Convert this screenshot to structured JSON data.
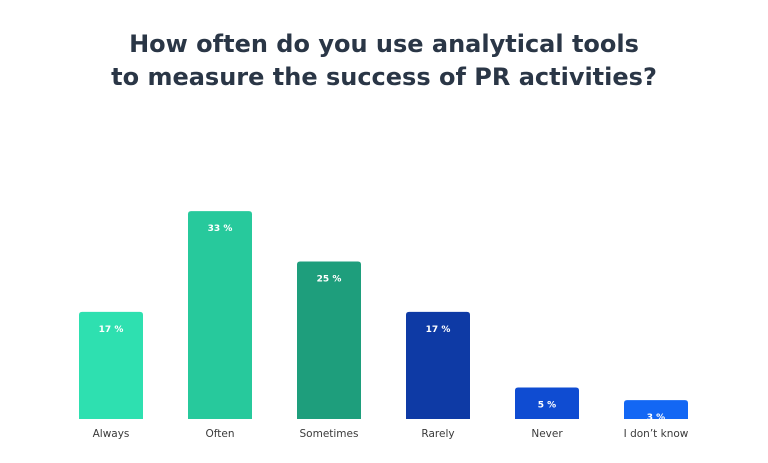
{
  "chart_data": {
    "type": "bar",
    "title_lines": [
      "How often do you use analytical tools",
      "to measure the success of PR activities?"
    ],
    "xlabel": "",
    "ylabel": "",
    "categories": [
      "Always",
      "Often",
      "Sometimes",
      "Rarely",
      "Never",
      "I don’t know"
    ],
    "values": [
      17,
      33,
      25,
      17,
      5,
      3
    ],
    "value_labels": [
      "17 %",
      "33 %",
      "25 %",
      "17 %",
      "5 %",
      "3 %"
    ],
    "colors": [
      "#2ee0b0",
      "#27c99c",
      "#1e9e7c",
      "#0e3aa5",
      "#0f4cd2",
      "#1367f4"
    ],
    "grid": false,
    "legend": "none"
  }
}
